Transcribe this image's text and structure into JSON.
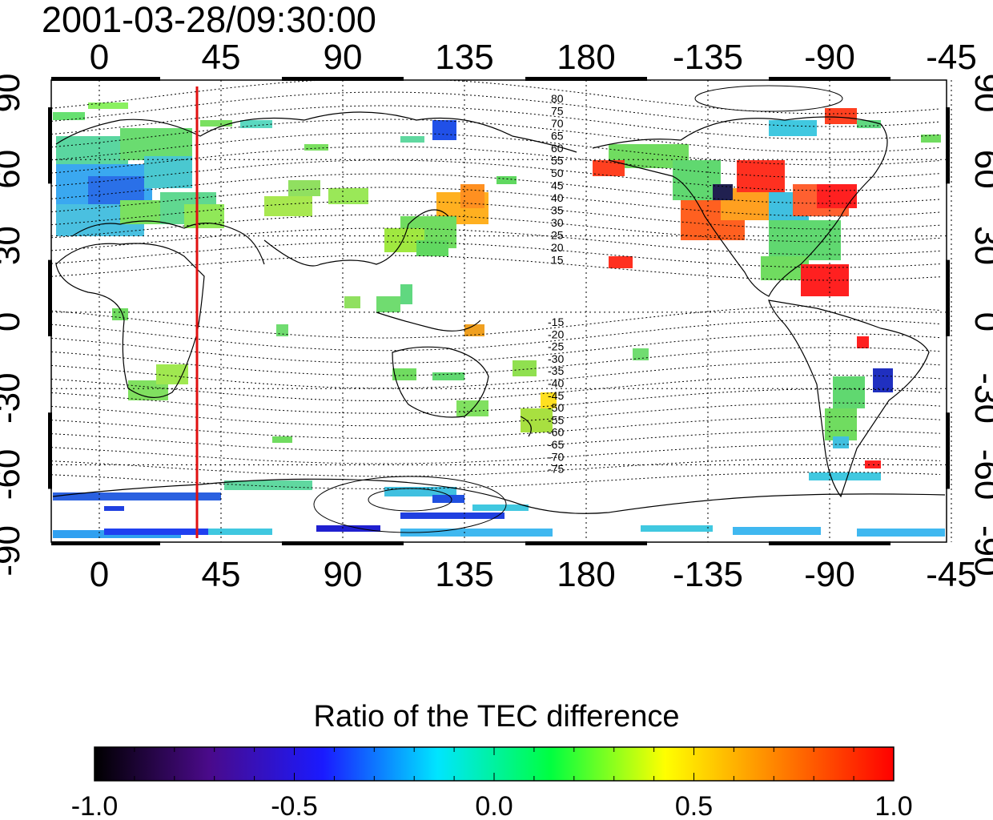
{
  "title": "2001-03-28/09:30:00",
  "map": {
    "x_ticks": [
      "0",
      "45",
      "90",
      "135",
      "180",
      "-135",
      "-90",
      "-45"
    ],
    "y_ticks_left": [
      "90",
      "60",
      "30",
      "0",
      "-30",
      "-60",
      "-90"
    ],
    "y_ticks_right": [
      "90",
      "60",
      "30",
      "0",
      "-30",
      "-60",
      "-90"
    ],
    "marker_line_color": "#e01010",
    "contour_labels_north": [
      "80",
      "75",
      "70",
      "65",
      "60",
      "55",
      "50",
      "45",
      "40",
      "35",
      "30",
      "25",
      "20",
      "15"
    ],
    "contour_labels_south": [
      "-15",
      "-20",
      "-25",
      "-30",
      "-35",
      "-40",
      "-45",
      "-50",
      "-55",
      "-60",
      "-65",
      "-70",
      "-75"
    ]
  },
  "colorbar": {
    "title": "Ratio of the TEC difference",
    "tick_labels": [
      "-1.0",
      "-0.5",
      "0.0",
      "0.5",
      "1.0"
    ],
    "stops": [
      "#000000",
      "#4a0a8a",
      "#1a1aff",
      "#00e5ff",
      "#00ff40",
      "#ffff00",
      "#ff8000",
      "#ff0000"
    ]
  }
}
